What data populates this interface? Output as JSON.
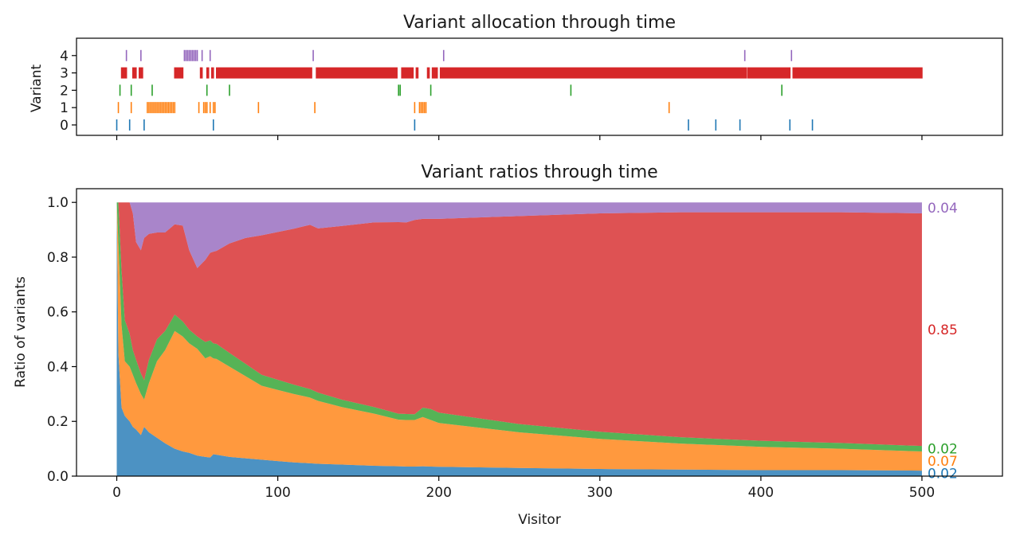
{
  "colors": {
    "variant_0": "#1f77b4",
    "variant_1": "#ff7f0e",
    "variant_2": "#2ca02c",
    "variant_3": "#d62728",
    "variant_4": "#9467bd"
  },
  "chart_data": [
    {
      "type": "scatter",
      "title": "Variant allocation through time",
      "ylabel": "Variant",
      "xlabel": "",
      "xlim": [
        -25,
        550
      ],
      "ylim": [
        -0.6,
        5.0
      ],
      "x_ticks": [
        0,
        100,
        200,
        300,
        400,
        500
      ],
      "x_tick_labels_shown": false,
      "y_ticks": [
        0,
        1,
        2,
        3,
        4
      ],
      "y_tick_labels": [
        "0",
        "1",
        "2",
        "3",
        "4"
      ],
      "events": [
        {
          "variant": 0,
          "visitors": [
            0,
            8,
            17,
            60,
            185,
            355,
            372,
            387,
            418,
            432
          ]
        },
        {
          "variant": 1,
          "visitors": [
            1,
            9,
            19,
            20,
            21,
            22,
            23,
            24,
            25,
            26,
            27,
            28,
            29,
            30,
            31,
            32,
            33,
            34,
            35,
            36,
            51,
            54,
            55,
            56,
            58,
            60,
            61,
            88,
            123,
            185,
            188,
            189,
            190,
            191,
            192,
            343
          ]
        },
        {
          "variant": 2,
          "visitors": [
            2,
            9,
            22,
            56,
            70,
            175,
            176,
            195,
            282,
            413
          ]
        },
        {
          "variant": 4,
          "visitors": [
            6,
            15,
            42,
            43,
            44,
            45,
            46,
            47,
            48,
            49,
            50,
            53,
            58,
            122,
            203,
            390,
            419
          ]
        },
        {
          "variant": 3,
          "segments": [
            [
              3,
              6
            ],
            [
              10,
              12
            ],
            [
              14,
              16
            ],
            [
              36,
              41
            ],
            [
              52,
              53
            ],
            [
              56,
              57
            ],
            [
              59,
              60
            ],
            [
              62,
              121
            ],
            [
              124,
              174
            ],
            [
              177,
              184
            ],
            [
              186,
              187
            ],
            [
              193,
              194
            ],
            [
              196,
              199
            ],
            [
              201,
              391
            ],
            [
              392,
              418
            ],
            [
              420,
              500
            ]
          ]
        }
      ]
    },
    {
      "type": "area",
      "title": "Variant ratios through time",
      "xlabel": "Visitor",
      "ylabel": "Ratio of variants",
      "xlim": [
        -25,
        550
      ],
      "ylim": [
        0.0,
        1.05
      ],
      "x_ticks": [
        0,
        100,
        200,
        300,
        400,
        500
      ],
      "x_tick_labels": [
        "0",
        "100",
        "200",
        "300",
        "400",
        "500"
      ],
      "y_ticks": [
        0.0,
        0.2,
        0.4,
        0.6,
        0.8,
        1.0
      ],
      "y_tick_labels": [
        "0.0",
        "0.2",
        "0.4",
        "0.6",
        "0.8",
        "1.0"
      ],
      "stacked": true,
      "x": [
        0,
        1,
        3,
        5,
        8,
        10,
        12,
        15,
        17,
        20,
        25,
        30,
        36,
        41,
        45,
        50,
        55,
        58,
        60,
        62,
        70,
        80,
        90,
        100,
        110,
        120,
        125,
        140,
        160,
        175,
        180,
        185,
        190,
        195,
        200,
        250,
        300,
        350,
        400,
        450,
        500
      ],
      "series": [
        {
          "name": "0",
          "values": [
            1.0,
            0.45,
            0.25,
            0.22,
            0.2,
            0.18,
            0.17,
            0.15,
            0.18,
            0.16,
            0.14,
            0.12,
            0.1,
            0.09,
            0.085,
            0.075,
            0.07,
            0.068,
            0.08,
            0.078,
            0.07,
            0.065,
            0.06,
            0.055,
            0.05,
            0.047,
            0.045,
            0.042,
            0.038,
            0.036,
            0.035,
            0.035,
            0.036,
            0.035,
            0.034,
            0.03,
            0.026,
            0.024,
            0.022,
            0.022,
            0.02
          ]
        },
        {
          "name": "1",
          "values": [
            0.0,
            0.4,
            0.3,
            0.2,
            0.2,
            0.19,
            0.17,
            0.15,
            0.1,
            0.18,
            0.28,
            0.34,
            0.43,
            0.42,
            0.4,
            0.39,
            0.36,
            0.37,
            0.35,
            0.35,
            0.33,
            0.3,
            0.27,
            0.26,
            0.25,
            0.24,
            0.23,
            0.21,
            0.19,
            0.17,
            0.17,
            0.17,
            0.18,
            0.17,
            0.16,
            0.13,
            0.11,
            0.095,
            0.085,
            0.078,
            0.07
          ]
        },
        {
          "name": "2",
          "values": [
            0.0,
            0.15,
            0.2,
            0.15,
            0.12,
            0.09,
            0.085,
            0.075,
            0.07,
            0.085,
            0.08,
            0.07,
            0.06,
            0.055,
            0.05,
            0.045,
            0.06,
            0.058,
            0.055,
            0.055,
            0.05,
            0.045,
            0.04,
            0.037,
            0.034,
            0.031,
            0.03,
            0.027,
            0.024,
            0.022,
            0.022,
            0.021,
            0.034,
            0.04,
            0.038,
            0.03,
            0.026,
            0.023,
            0.022,
            0.021,
            0.02
          ]
        },
        {
          "name": "3",
          "values": [
            0.0,
            0.0,
            0.25,
            0.43,
            0.48,
            0.5,
            0.43,
            0.45,
            0.52,
            0.46,
            0.39,
            0.36,
            0.33,
            0.35,
            0.29,
            0.25,
            0.3,
            0.32,
            0.335,
            0.34,
            0.4,
            0.46,
            0.51,
            0.54,
            0.57,
            0.6,
            0.6,
            0.635,
            0.675,
            0.7,
            0.7,
            0.71,
            0.69,
            0.695,
            0.708,
            0.76,
            0.798,
            0.822,
            0.835,
            0.843,
            0.85
          ]
        },
        {
          "name": "4",
          "values": [
            0.0,
            0.0,
            0.0,
            0.0,
            0.0,
            0.04,
            0.145,
            0.175,
            0.13,
            0.115,
            0.11,
            0.11,
            0.08,
            0.085,
            0.175,
            0.24,
            0.21,
            0.184,
            0.18,
            0.177,
            0.15,
            0.13,
            0.12,
            0.108,
            0.096,
            0.082,
            0.095,
            0.086,
            0.073,
            0.072,
            0.073,
            0.064,
            0.06,
            0.06,
            0.06,
            0.05,
            0.04,
            0.036,
            0.036,
            0.036,
            0.04
          ]
        }
      ],
      "end_labels": [
        {
          "variant": 4,
          "text": "0.04"
        },
        {
          "variant": 3,
          "text": "0.85"
        },
        {
          "variant": 2,
          "text": "0.02"
        },
        {
          "variant": 1,
          "text": "0.07"
        },
        {
          "variant": 0,
          "text": "0.02"
        }
      ]
    }
  ]
}
